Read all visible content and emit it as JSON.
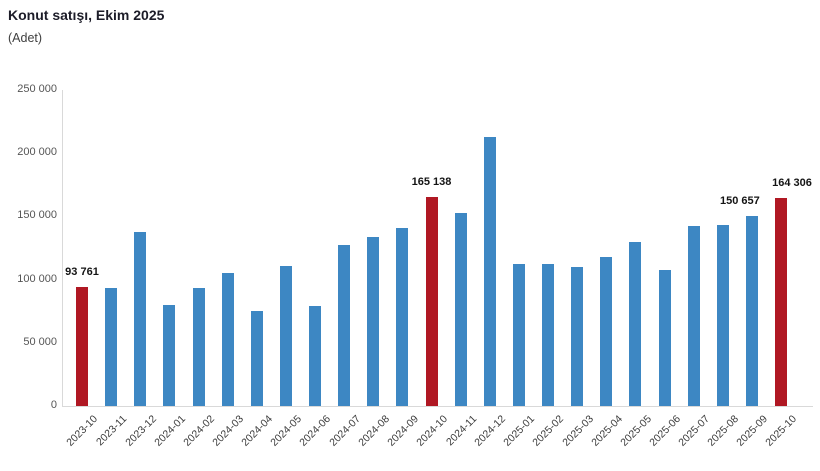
{
  "header": {
    "title": "Konut satışı, Ekim 2025",
    "subtitle": "(Adet)"
  },
  "colors": {
    "bar_default": "#3d87c3",
    "bar_highlight": "#b01823",
    "axis_line": "#d9d9d9",
    "ytick_text": "#555555",
    "xtick_text": "#3c3c3c",
    "title_text": "#1c1c28",
    "datalabel_text": "#141414"
  },
  "chart_data": {
    "type": "bar",
    "title": "Konut satışı, Ekim 2025",
    "unit_label": "(Adet)",
    "xlabel": "",
    "ylabel": "",
    "ylim": [
      0,
      250000
    ],
    "ytick_interval": 50000,
    "ytick_labels": [
      "0",
      "50 000",
      "100 000",
      "150 000",
      "200 000",
      "250 000"
    ],
    "grid": false,
    "legend": "none",
    "categories": [
      "2023-10",
      "2023-11",
      "2023-12",
      "2024-01",
      "2024-02",
      "2024-03",
      "2024-04",
      "2024-05",
      "2024-06",
      "2024-07",
      "2024-08",
      "2024-09",
      "2024-10",
      "2024-11",
      "2024-12",
      "2025-01",
      "2025-02",
      "2025-03",
      "2025-04",
      "2025-05",
      "2025-06",
      "2025-07",
      "2025-08",
      "2025-09",
      "2025-10"
    ],
    "values": [
      93761,
      93500,
      138000,
      80000,
      93500,
      105000,
      75500,
      110500,
      79000,
      127000,
      134000,
      140500,
      165138,
      152500,
      212500,
      112000,
      112500,
      110000,
      118000,
      129500,
      107500,
      142500,
      143000,
      150657,
      164306
    ],
    "highlighted_categories": [
      "2023-10",
      "2024-10",
      "2025-10"
    ],
    "data_labels": [
      {
        "category": "2023-10",
        "text": "93 761",
        "dx": 0
      },
      {
        "category": "2024-10",
        "text": "165 138",
        "dx": 0
      },
      {
        "category": "2025-09",
        "text": "150 657",
        "dx": -12
      },
      {
        "category": "2025-10",
        "text": "164 306",
        "dx": 11
      }
    ]
  }
}
